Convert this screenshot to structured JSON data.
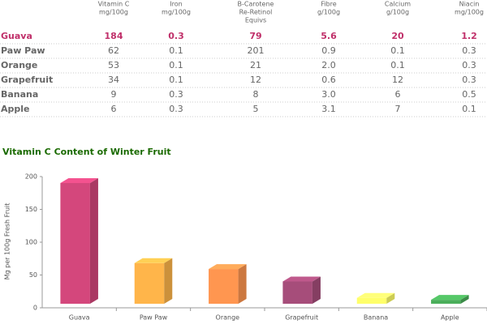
{
  "table": {
    "header": [
      [
        "Vitamin C",
        "mg/100g"
      ],
      [
        "Iron",
        "mg/100g"
      ],
      [
        "B-Carotene",
        "Re-Retinol",
        "Equivs"
      ],
      [
        "Fibre",
        "g/100g"
      ],
      [
        "Calcium",
        "g/100g"
      ],
      [
        "Niacin",
        "mg/100g"
      ]
    ],
    "rows": [
      [
        "Guava",
        "184",
        "0.3",
        "79",
        "5.6",
        "20",
        "1.2"
      ],
      [
        "Paw Paw",
        "62",
        "0.1",
        "201",
        "0.9",
        "0.1",
        "0.3"
      ],
      [
        "Orange",
        "53",
        "0.1",
        "21",
        "2.0",
        "0.1",
        "0.3"
      ],
      [
        "Grapefruit",
        "34",
        "0.1",
        "12",
        "0.6",
        "12",
        "0.3"
      ],
      [
        "Banana",
        "9",
        "0.3",
        "8",
        "3.0",
        "6",
        "0.5"
      ],
      [
        "Apple",
        "6",
        "0.3",
        "5",
        "3.1",
        "7",
        "0.1"
      ]
    ]
  },
  "chart_data": {
    "type": "bar3d",
    "title": "Vitamin C Content of Winter Fruit",
    "y_label": "Mg per 100g Fresh Fruit",
    "categories": [
      "Guava",
      "Paw Paw",
      "Orange",
      "Grapefruit",
      "Banana",
      "Apple"
    ],
    "values": [
      184,
      62,
      53,
      34,
      9,
      6
    ],
    "colors": [
      "#d4477c",
      "#ffb54a",
      "#ff9650",
      "#a64d7a",
      "#ffff6a",
      "#4aae5a"
    ],
    "ylim": [
      0,
      200
    ],
    "yticks": [
      0,
      50,
      100,
      150,
      200
    ]
  }
}
